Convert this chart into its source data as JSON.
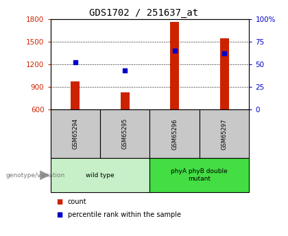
{
  "title": "GDS1702 / 251637_at",
  "samples": [
    "GSM65294",
    "GSM65295",
    "GSM65296",
    "GSM65297"
  ],
  "counts": [
    975,
    830,
    1760,
    1540
  ],
  "percentiles": [
    52,
    43,
    65,
    62
  ],
  "ylim_left": [
    600,
    1800
  ],
  "ylim_right": [
    0,
    100
  ],
  "yticks_left": [
    600,
    900,
    1200,
    1500,
    1800
  ],
  "yticks_right": [
    0,
    25,
    50,
    75,
    100
  ],
  "groups": [
    {
      "label": "wild type",
      "indices": [
        0,
        1
      ],
      "color": "#c8f0c8"
    },
    {
      "label": "phyA phyB double\nmutant",
      "indices": [
        2,
        3
      ],
      "color": "#44dd44"
    }
  ],
  "bar_color": "#cc2200",
  "dot_color": "#0000cc",
  "background_label": "#c8c8c8",
  "title_fontsize": 10,
  "axis_label_color_left": "#cc2200",
  "axis_label_color_right": "#0000cc",
  "legend_count_label": "count",
  "legend_pct_label": "percentile rank within the sample",
  "genotype_label": "genotype/variation"
}
